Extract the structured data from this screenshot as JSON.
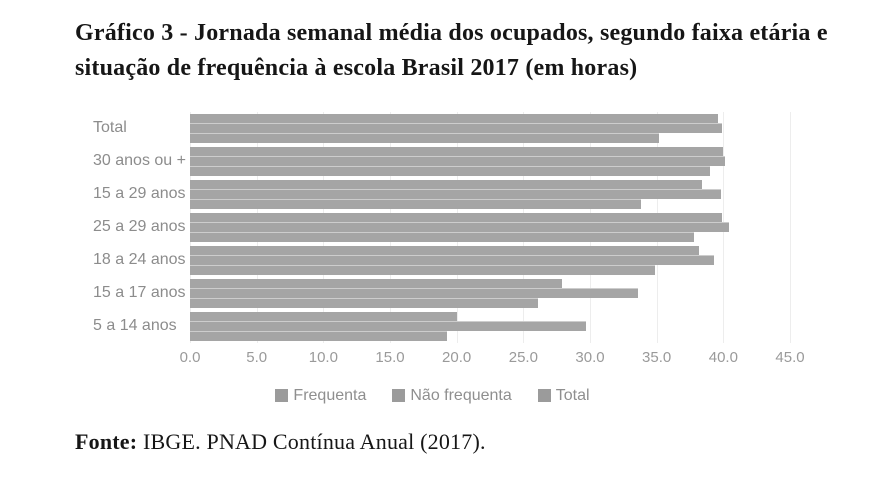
{
  "title": "Gráfico 3 - Jornada semanal média dos ocupados, segundo faixa etária e situação de frequência à escola Brasil 2017 (em horas)",
  "footer": {
    "label": "Fonte:",
    "text": " IBGE. PNAD Contínua Anual (2017)."
  },
  "chart_data": {
    "type": "bar",
    "orientation": "horizontal",
    "title": "Gráfico 3 - Jornada semanal média dos ocupados, segundo faixa etária e situação de frequência à escola Brasil 2017 (em horas)",
    "categories": [
      "Total",
      "30 anos ou +",
      "15 a 29 anos",
      "25 a 29 anos",
      "18 a 24 anos",
      "15 a 17 anos",
      "5 a 14 anos"
    ],
    "series": [
      {
        "name": "Frequenta",
        "values": [
          35.2,
          39.0,
          33.8,
          37.8,
          34.9,
          26.1,
          19.3
        ]
      },
      {
        "name": "Não frequenta",
        "values": [
          39.9,
          40.1,
          39.8,
          40.4,
          39.3,
          33.6,
          29.7
        ]
      },
      {
        "name": "Total",
        "values": [
          39.6,
          40.0,
          38.4,
          39.9,
          38.2,
          27.9,
          20.0
        ]
      }
    ],
    "row_order_top_to_bottom": [
      "Total",
      "Não frequenta",
      "Frequenta"
    ],
    "xlabel": "",
    "ylabel": "",
    "xlim": [
      0,
      45
    ],
    "x_ticks": [
      0,
      5,
      10,
      15,
      20,
      25,
      30,
      35,
      40,
      45
    ],
    "x_tick_labels": [
      "0.0",
      "5.0",
      "10.0",
      "15.0",
      "20.0",
      "25.0",
      "30.0",
      "35.0",
      "40.0",
      "45.0"
    ],
    "grid": true,
    "legend_position": "bottom",
    "legend": [
      "Frequenta",
      "Não frequenta",
      "Total"
    ],
    "colors": {
      "bar": "#a5a5a5",
      "grid": "#ededed",
      "category_label": "#8c8c8c",
      "tick_label": "#9a9a9a",
      "legend_text": "#8f8f8f",
      "title_text": "#161616"
    }
  }
}
